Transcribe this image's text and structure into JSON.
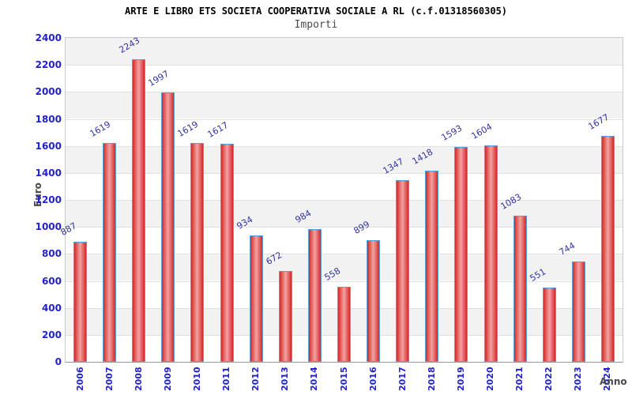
{
  "chart_data": {
    "type": "bar",
    "title": "ARTE E LIBRO ETS SOCIETA COOPERATIVA SOCIALE A RL (c.f.01318560305)",
    "subtitle": "Importi",
    "xlabel": "Anno",
    "ylabel": "Euro",
    "categories": [
      "2006",
      "2007",
      "2008",
      "2009",
      "2010",
      "2011",
      "2012",
      "2013",
      "2014",
      "2015",
      "2016",
      "2017",
      "2018",
      "2019",
      "2020",
      "2021",
      "2022",
      "2023",
      "2024"
    ],
    "values": [
      887,
      1619,
      2243,
      1997,
      1619,
      1617,
      934,
      672,
      984,
      558,
      899,
      1347,
      1418,
      1593,
      1604,
      1083,
      551,
      744,
      1677
    ],
    "ylim": [
      0,
      2400
    ],
    "ytick_step": 200,
    "legend": "none",
    "grid": "horizontal-bands-alternating",
    "colors": {
      "bar_edge_red": "#d42a2a",
      "bar_center_red": "#f2a2a2",
      "bar_border_blue": "#58a0dc",
      "axis_tick_blue": "#2222cc",
      "value_label_navy": "#3333a2",
      "band_gray": "#f2f2f2",
      "band_white": "#ffffff",
      "gridline_gray": "#e0e0e0",
      "axis_title_gray": "#4a4a4a"
    }
  }
}
